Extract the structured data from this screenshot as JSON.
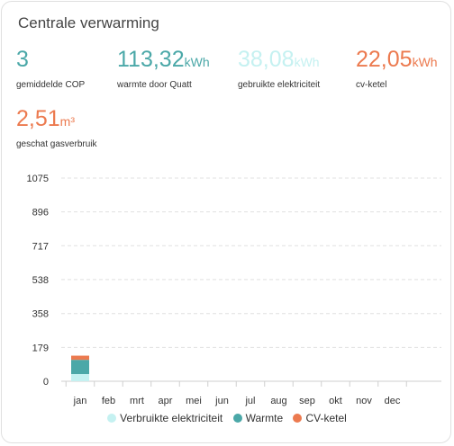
{
  "card": {
    "title": "Centrale verwarming"
  },
  "stats": [
    {
      "value": "3",
      "unit": "",
      "label": "gemiddelde COP",
      "color": "#4ba8a8"
    },
    {
      "value": "113,32",
      "unit": "kWh",
      "label": "warmte door Quatt",
      "color": "#4ba8a8"
    },
    {
      "value": "38,08",
      "unit": "kWh",
      "label": "gebruikte elektriciteit",
      "color": "#c5f1f1"
    },
    {
      "value": "22,05",
      "unit": "kWh",
      "label": "cv-ketel",
      "color": "#ec7a4f"
    },
    {
      "value": "2,51",
      "unit": "m³",
      "label": "geschat gasverbruik",
      "color": "#ec7a4f"
    }
  ],
  "chart_data": {
    "type": "bar",
    "stacked": true,
    "categories": [
      "jan",
      "feb",
      "mrt",
      "apr",
      "mei",
      "jun",
      "jul",
      "aug",
      "sep",
      "okt",
      "nov",
      "dec"
    ],
    "series": [
      {
        "name": "Verbruikte elektriciteit",
        "color": "#c5f1f1",
        "values": [
          38.08,
          0,
          0,
          0,
          0,
          0,
          0,
          0,
          0,
          0,
          0,
          0
        ]
      },
      {
        "name": "Warmte",
        "color": "#4ba8a8",
        "values": [
          75.24,
          0,
          0,
          0,
          0,
          0,
          0,
          0,
          0,
          0,
          0,
          0
        ]
      },
      {
        "name": "CV-ketel",
        "color": "#ec7a4f",
        "values": [
          22.05,
          0,
          0,
          0,
          0,
          0,
          0,
          0,
          0,
          0,
          0,
          0
        ]
      }
    ],
    "yticks": [
      "0",
      "179",
      "358",
      "538",
      "717",
      "896",
      "1075"
    ],
    "ylim": [
      0,
      1075
    ],
    "grid": true,
    "legend_position": "bottom"
  }
}
